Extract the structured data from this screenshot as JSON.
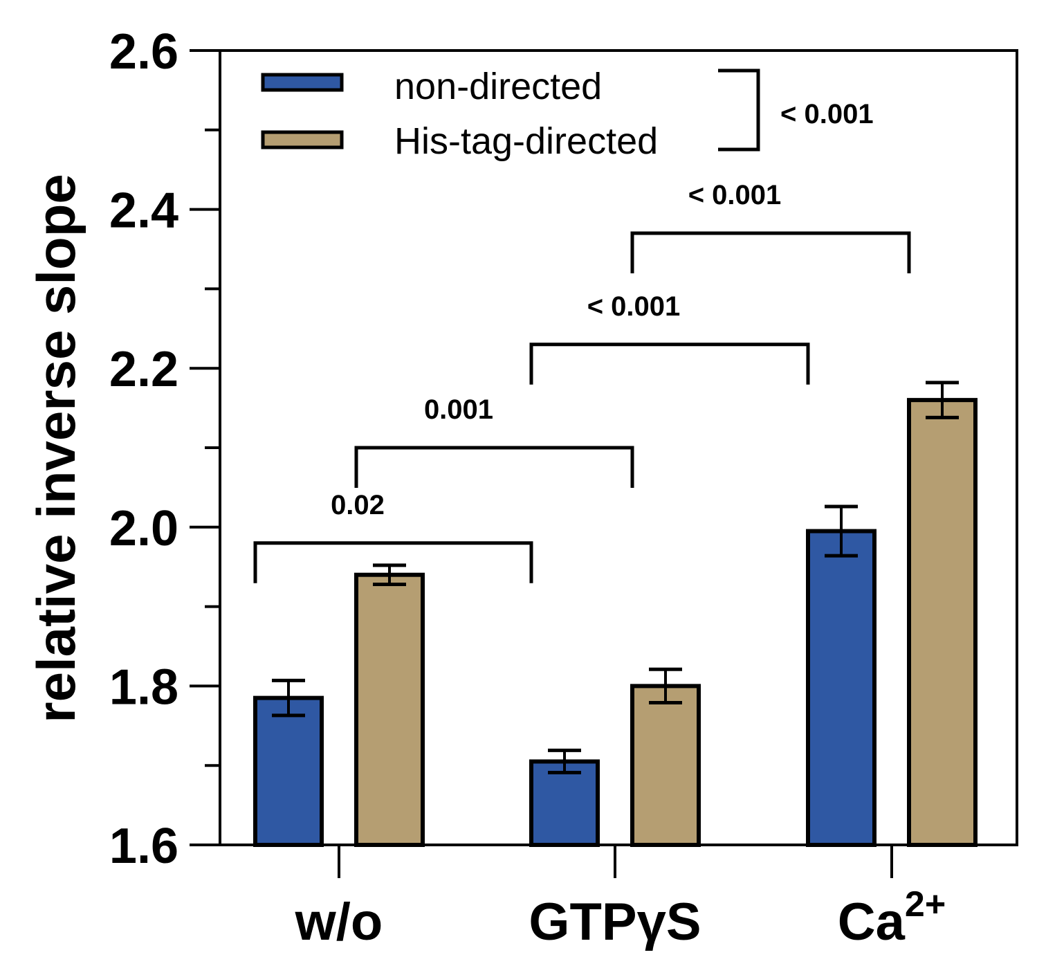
{
  "chart_data": {
    "type": "bar",
    "ylabel": "relative inverse slope",
    "xlabel": "",
    "ylim": [
      1.6,
      2.6
    ],
    "yticks": [
      "1.6",
      "1.8",
      "2.0",
      "2.2",
      "2.4",
      "2.6"
    ],
    "categories": [
      "w/o",
      "GTPγS",
      "Ca"
    ],
    "category_superscript": {
      "2": "2+"
    },
    "series": [
      {
        "name": "non-directed",
        "color": "#2f58a3",
        "values": [
          1.785,
          1.705,
          1.995
        ],
        "errors": [
          0.022,
          0.014,
          0.031
        ]
      },
      {
        "name": "His-tag-directed",
        "color": "#b59e72",
        "values": [
          1.94,
          1.8,
          2.16
        ],
        "errors": [
          0.012,
          0.021,
          0.022
        ]
      }
    ],
    "legend_bracket_label": "< 0.001",
    "significance": [
      {
        "label": "0.02",
        "from": [
          0,
          0
        ],
        "to": [
          1,
          0
        ],
        "y": 1.98
      },
      {
        "label": "0.001",
        "from": [
          0,
          1
        ],
        "to": [
          1,
          1
        ],
        "y": 2.1
      },
      {
        "label": "< 0.001",
        "from": [
          1,
          0
        ],
        "to": [
          2,
          0
        ],
        "y": 2.23
      },
      {
        "label": "< 0.001",
        "from": [
          1,
          1
        ],
        "to": [
          2,
          1
        ],
        "y": 2.37
      }
    ]
  }
}
